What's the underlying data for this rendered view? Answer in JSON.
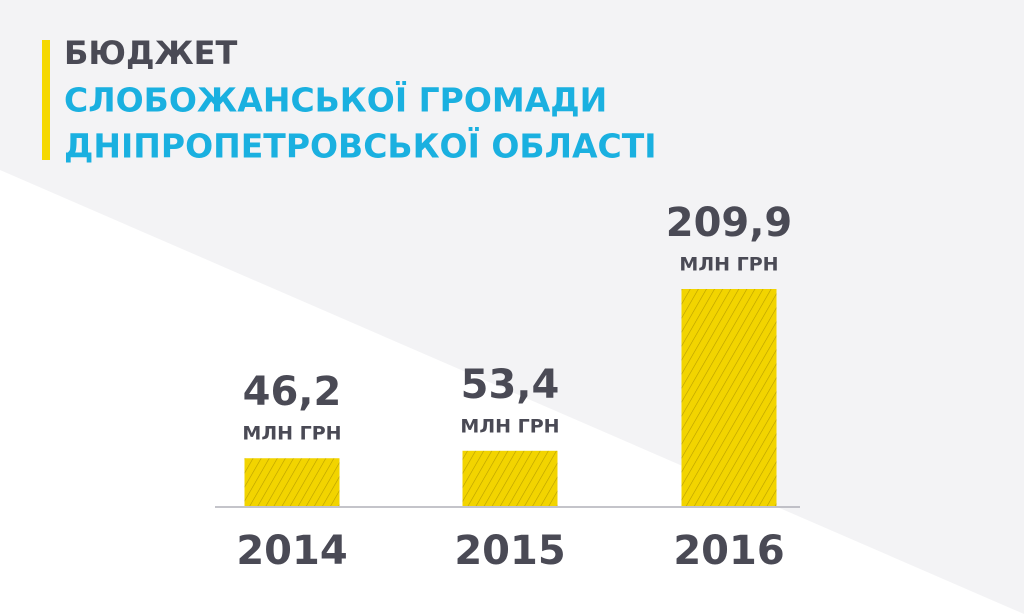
{
  "chart_data": {
    "type": "bar",
    "title": [
      "БЮДЖЕТ",
      "СЛОБОЖАНСЬКОЇ ГРОМАДИ",
      "ДНІПРОПЕТРОВСЬКОЇ ОБЛАСТІ"
    ],
    "unit": "МЛН ГРН",
    "categories": [
      "2014",
      "2015",
      "2016"
    ],
    "values": [
      46.2,
      53.4,
      209.9
    ],
    "value_labels": [
      "46,2",
      "53,4",
      "209,9"
    ],
    "color": "#f2d400"
  }
}
